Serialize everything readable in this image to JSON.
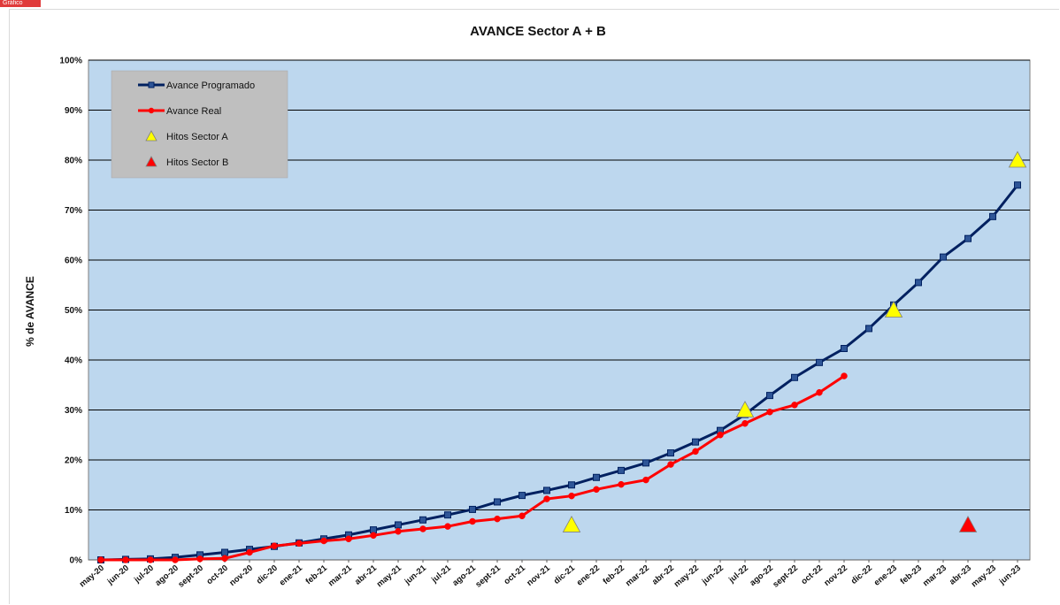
{
  "page": {
    "corner_tag": "Gráfico"
  },
  "chart_data": {
    "type": "line",
    "title": "AVANCE Sector A + B",
    "ylabel": "% de AVANCE",
    "xlabel": "",
    "ylim": [
      0,
      100
    ],
    "y_ticks": [
      "0%",
      "10%",
      "20%",
      "30%",
      "40%",
      "50%",
      "60%",
      "70%",
      "80%",
      "90%",
      "100%"
    ],
    "grid": true,
    "plot_background": "#BDD7EE",
    "legend_position": "top-left",
    "categories": [
      "may-20",
      "jun-20",
      "jul-20",
      "ago-20",
      "sept-20",
      "oct-20",
      "nov-20",
      "dic-20",
      "ene-21",
      "feb-21",
      "mar-21",
      "abr-21",
      "may-21",
      "jun-21",
      "jul-21",
      "ago-21",
      "sept-21",
      "oct-21",
      "nov-21",
      "dic-21",
      "ene-22",
      "feb-22",
      "mar-22",
      "abr-22",
      "may-22",
      "jun-22",
      "jul-22",
      "ago-22",
      "sept-22",
      "oct-22",
      "nov-22",
      "dic-22",
      "ene-23",
      "feb-23",
      "mar-23",
      "abr-23",
      "may-23",
      "jun-23"
    ],
    "series": [
      {
        "name": "Avance Programado",
        "color": "#002060",
        "marker": "square",
        "values": [
          0,
          0.1,
          0.2,
          0.5,
          1.0,
          1.5,
          2.1,
          2.7,
          3.4,
          4.2,
          5.0,
          6.0,
          7.0,
          8.0,
          9.0,
          10.1,
          11.6,
          12.9,
          13.9,
          15.0,
          16.5,
          17.9,
          19.4,
          21.4,
          23.6,
          25.9,
          29.1,
          32.9,
          36.5,
          39.5,
          42.3,
          46.3,
          51.0,
          55.5,
          60.6,
          64.3,
          68.7,
          75.0
        ]
      },
      {
        "name": "Avance Real",
        "color": "#FF0000",
        "marker": "circle",
        "values": [
          0,
          0,
          0,
          0,
          0.2,
          0.3,
          1.5,
          2.8,
          3.3,
          3.8,
          4.2,
          4.9,
          5.7,
          6.2,
          6.7,
          7.7,
          8.2,
          8.8,
          12.2,
          12.8,
          14.1,
          15.1,
          16.0,
          19.1,
          21.7,
          25.0,
          27.3,
          29.6,
          31.0,
          33.5,
          36.8,
          null,
          null,
          null,
          null,
          null,
          null,
          null
        ]
      },
      {
        "name": "Hitos Sector A",
        "color": "#FFFF00",
        "marker": "triangle",
        "points": [
          {
            "x": "dic-21",
            "y": 7
          },
          {
            "x": "jul-22",
            "y": 30
          },
          {
            "x": "ene-23",
            "y": 50
          },
          {
            "x": "jun-23",
            "y": 80
          }
        ]
      },
      {
        "name": "Hitos Sector B",
        "color": "#FF0000",
        "marker": "triangle",
        "points": [
          {
            "x": "abr-23",
            "y": 7
          }
        ]
      }
    ]
  }
}
